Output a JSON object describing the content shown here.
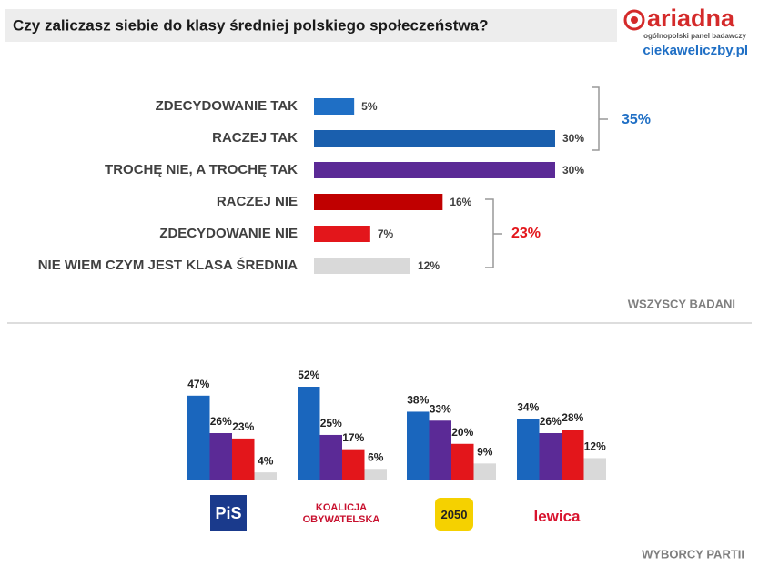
{
  "header": {
    "title": "Czy zaliczasz siebie do klasy średniej polskiego społeczeństwa?",
    "logo": "ariadna",
    "logo_subtitle": "ogólnopolski panel badawczy",
    "website": "ciekaweliczby.pl"
  },
  "chart_data": [
    {
      "type": "hbar",
      "caption": "WSZYSCY BADANI",
      "categories": [
        "ZDECYDOWANIE TAK",
        "RACZEJ TAK",
        "TROCHĘ NIE, A TROCHĘ TAK",
        "RACZEJ NIE",
        "ZDECYDOWANIE NIE",
        "NIE WIEM CZYM JEST KLASA ŚREDNIA"
      ],
      "values": [
        5,
        30,
        30,
        16,
        7,
        12
      ],
      "value_labels": [
        "5%",
        "30%",
        "30%",
        "16%",
        "7%",
        "12%"
      ],
      "colors": [
        "#1f6fc5",
        "#1a5fae",
        "#5b2a96",
        "#c00000",
        "#e3161b",
        "#d9d9d9"
      ],
      "annotations": [
        {
          "value": 35,
          "label": "35%",
          "color": "#1f6fc5"
        },
        {
          "value": 23,
          "label": "23%",
          "color": "#e3161b"
        }
      ]
    },
    {
      "type": "grouped-bar",
      "caption": "WYBORCY PARTII",
      "categories": [
        "PiS",
        "KOALICJA OBYWATELSKA",
        "2050",
        "lewica"
      ],
      "series": [
        {
          "color": "#1a66bd",
          "values": [
            47,
            52,
            38,
            34
          ],
          "value_labels": [
            "47%",
            "52%",
            "38%",
            "34%"
          ]
        },
        {
          "color": "#5b2a96",
          "values": [
            26,
            25,
            33,
            26
          ],
          "value_labels": [
            "26%",
            "25%",
            "33%",
            "26%"
          ]
        },
        {
          "color": "#e3161b",
          "values": [
            23,
            17,
            20,
            28
          ],
          "value_labels": [
            "23%",
            "17%",
            "20%",
            "28%"
          ]
        },
        {
          "color": "#d9d9d9",
          "values": [
            4,
            6,
            9,
            12
          ],
          "value_labels": [
            "4%",
            "6%",
            "9%",
            "12%"
          ]
        }
      ]
    }
  ]
}
